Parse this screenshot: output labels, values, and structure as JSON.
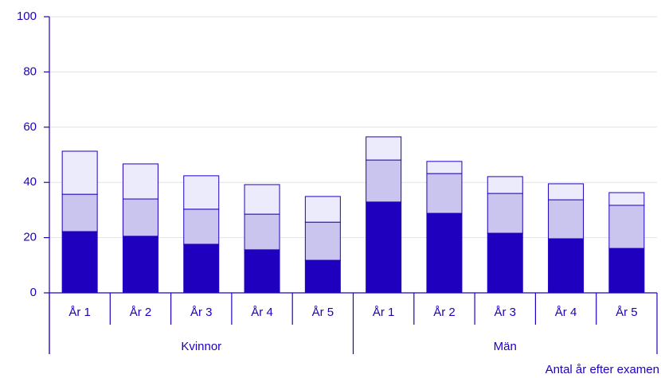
{
  "chart_data": {
    "type": "stacked_bar",
    "x_label": "Antal år efter examen",
    "groups": [
      "Kvinnor",
      "Män"
    ],
    "categories": [
      "År 1",
      "År 2",
      "År 3",
      "År 4",
      "År 5",
      "År 1",
      "År 2",
      "År 3",
      "År 4",
      "År 5"
    ],
    "series": [
      {
        "color": "#1e00be",
        "values": [
          22.2,
          20.5,
          17.6,
          15.6,
          11.8,
          32.9,
          28.8,
          21.6,
          19.6,
          16.1
        ]
      },
      {
        "color": "#c9c5ef",
        "values": [
          13.5,
          13.5,
          12.7,
          12.9,
          13.8,
          15.2,
          14.4,
          14.4,
          14.1,
          15.6
        ]
      },
      {
        "color": "#ecebfb",
        "values": [
          15.6,
          12.7,
          12.1,
          10.7,
          9.3,
          8.4,
          4.4,
          6.1,
          5.8,
          4.6
        ]
      }
    ],
    "ylim": [
      0,
      100
    ],
    "yticks": [
      0,
      20,
      40,
      60,
      80,
      100
    ],
    "grid": true
  }
}
